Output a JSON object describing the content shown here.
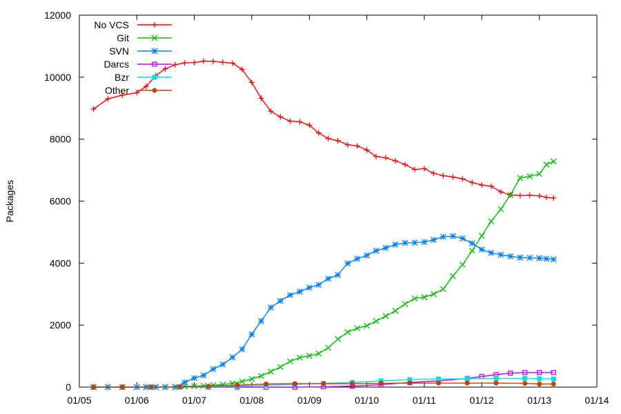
{
  "chart_data": {
    "type": "line",
    "ylabel": "Packages",
    "xlabel": "",
    "title": "",
    "xlim": [
      "2005-01-01",
      "2014-01-01"
    ],
    "ylim": [
      0,
      12000
    ],
    "x_ticks": [
      "01/05",
      "01/06",
      "01/07",
      "01/08",
      "01/09",
      "01/10",
      "01/11",
      "01/12",
      "01/13",
      "01/14"
    ],
    "y_ticks": [
      0,
      2000,
      4000,
      6000,
      8000,
      10000,
      12000
    ],
    "grid": false,
    "legend_position": "top-left",
    "series": [
      {
        "name": "No VCS",
        "color": "#ff0000",
        "marker": "plus",
        "x": [
          "2005-04-01",
          "2005-07-01",
          "2005-10-01",
          "2006-01-01",
          "2006-03-01",
          "2006-05-01",
          "2006-07-01",
          "2006-09-01",
          "2006-11-01",
          "2007-01-01",
          "2007-03-01",
          "2007-05-01",
          "2007-07-01",
          "2007-09-01",
          "2007-11-01",
          "2008-01-01",
          "2008-03-01",
          "2008-05-01",
          "2008-07-01",
          "2008-09-01",
          "2008-11-01",
          "2009-01-01",
          "2009-03-01",
          "2009-05-01",
          "2009-07-01",
          "2009-09-01",
          "2009-11-01",
          "2010-01-01",
          "2010-03-01",
          "2010-05-01",
          "2010-07-01",
          "2010-09-01",
          "2010-11-01",
          "2011-01-01",
          "2011-03-01",
          "2011-05-01",
          "2011-07-01",
          "2011-09-01",
          "2011-11-01",
          "2012-01-01",
          "2012-03-01",
          "2012-05-01",
          "2012-07-01",
          "2012-09-01",
          "2012-11-01",
          "2013-01-01",
          "2013-02-15",
          "2013-04-01"
        ],
        "values": [
          8970,
          9300,
          9420,
          9500,
          9700,
          10050,
          10270,
          10400,
          10460,
          10470,
          10520,
          10510,
          10480,
          10450,
          10250,
          9830,
          9320,
          8900,
          8720,
          8580,
          8560,
          8450,
          8200,
          8020,
          7950,
          7820,
          7780,
          7650,
          7440,
          7400,
          7300,
          7180,
          7020,
          7050,
          6900,
          6820,
          6780,
          6720,
          6600,
          6520,
          6480,
          6300,
          6200,
          6180,
          6190,
          6170,
          6120,
          6100
        ]
      },
      {
        "name": "Git",
        "color": "#00c000",
        "marker": "cross",
        "x": [
          "2005-04-01",
          "2005-07-01",
          "2005-10-01",
          "2006-01-01",
          "2006-03-01",
          "2006-05-01",
          "2006-07-01",
          "2006-09-01",
          "2006-11-01",
          "2007-01-01",
          "2007-03-01",
          "2007-05-01",
          "2007-07-01",
          "2007-09-01",
          "2007-11-01",
          "2008-01-01",
          "2008-03-01",
          "2008-05-01",
          "2008-07-01",
          "2008-09-01",
          "2008-11-01",
          "2009-01-01",
          "2009-03-01",
          "2009-05-01",
          "2009-07-01",
          "2009-09-01",
          "2009-11-01",
          "2010-01-01",
          "2010-03-01",
          "2010-05-01",
          "2010-07-01",
          "2010-09-01",
          "2010-11-01",
          "2011-01-01",
          "2011-03-01",
          "2011-05-01",
          "2011-07-01",
          "2011-09-01",
          "2011-11-01",
          "2012-01-01",
          "2012-03-01",
          "2012-05-01",
          "2012-07-01",
          "2012-09-01",
          "2012-11-01",
          "2013-01-01",
          "2013-02-15",
          "2013-04-01"
        ],
        "values": [
          0,
          0,
          0,
          0,
          0,
          0,
          0,
          10,
          20,
          30,
          40,
          60,
          80,
          120,
          180,
          260,
          360,
          500,
          650,
          830,
          950,
          1010,
          1080,
          1270,
          1550,
          1770,
          1900,
          1980,
          2130,
          2290,
          2460,
          2680,
          2860,
          2900,
          3000,
          3160,
          3580,
          3950,
          4400,
          4880,
          5350,
          5740,
          6200,
          6750,
          6800,
          6880,
          7180,
          7280
        ]
      },
      {
        "name": "SVN",
        "color": "#0080ff",
        "marker": "star",
        "x": [
          "2005-04-01",
          "2005-07-01",
          "2005-10-01",
          "2006-01-01",
          "2006-03-01",
          "2006-05-01",
          "2006-07-01",
          "2006-09-01",
          "2006-11-01",
          "2007-01-01",
          "2007-03-01",
          "2007-05-01",
          "2007-07-01",
          "2007-09-01",
          "2007-11-01",
          "2008-01-01",
          "2008-03-01",
          "2008-05-01",
          "2008-07-01",
          "2008-09-01",
          "2008-11-01",
          "2009-01-01",
          "2009-03-01",
          "2009-05-01",
          "2009-07-01",
          "2009-09-01",
          "2009-11-01",
          "2010-01-01",
          "2010-03-01",
          "2010-05-01",
          "2010-07-01",
          "2010-09-01",
          "2010-11-01",
          "2011-01-01",
          "2011-03-01",
          "2011-05-01",
          "2011-07-01",
          "2011-09-01",
          "2011-11-01",
          "2012-01-01",
          "2012-03-01",
          "2012-05-01",
          "2012-07-01",
          "2012-09-01",
          "2012-11-01",
          "2013-01-01",
          "2013-02-15",
          "2013-04-01"
        ],
        "values": [
          0,
          0,
          0,
          0,
          0,
          0,
          0,
          0,
          150,
          290,
          380,
          580,
          730,
          960,
          1220,
          1700,
          2130,
          2570,
          2780,
          2970,
          3080,
          3210,
          3300,
          3500,
          3620,
          3990,
          4140,
          4250,
          4400,
          4490,
          4600,
          4650,
          4660,
          4680,
          4750,
          4850,
          4870,
          4800,
          4640,
          4440,
          4330,
          4270,
          4220,
          4180,
          4170,
          4160,
          4140,
          4120
        ]
      },
      {
        "name": "Darcs",
        "color": "#c000ff",
        "marker": "square",
        "x": [
          "2005-04-01",
          "2005-10-01",
          "2006-04-01",
          "2006-10-01",
          "2007-04-01",
          "2007-10-01",
          "2008-04-01",
          "2008-10-01",
          "2009-04-01",
          "2009-10-01",
          "2010-04-01",
          "2010-10-01",
          "2011-04-01",
          "2011-10-01",
          "2012-01-01",
          "2012-04-01",
          "2012-07-01",
          "2012-10-01",
          "2013-01-01",
          "2013-04-01"
        ],
        "values": [
          0,
          0,
          0,
          0,
          0,
          0,
          0,
          0,
          10,
          30,
          80,
          150,
          200,
          280,
          340,
          400,
          450,
          470,
          470,
          470
        ]
      },
      {
        "name": "Bzr",
        "color": "#00e0e0",
        "marker": "filled-square",
        "x": [
          "2005-04-01",
          "2005-10-01",
          "2006-04-01",
          "2006-10-01",
          "2007-04-01",
          "2007-10-01",
          "2008-04-01",
          "2008-10-01",
          "2009-04-01",
          "2009-10-01",
          "2010-04-01",
          "2010-10-01",
          "2011-04-01",
          "2011-10-01",
          "2012-04-01",
          "2012-10-01",
          "2013-01-01",
          "2013-04-01"
        ],
        "values": [
          0,
          0,
          0,
          0,
          10,
          30,
          60,
          90,
          120,
          150,
          200,
          240,
          260,
          270,
          280,
          280,
          270,
          260
        ]
      },
      {
        "name": "Other",
        "color": "#c04000",
        "marker": "filled-circle",
        "x": [
          "2005-04-01",
          "2005-10-01",
          "2006-04-01",
          "2006-10-01",
          "2007-04-01",
          "2007-10-01",
          "2008-04-01",
          "2008-10-01",
          "2009-04-01",
          "2009-10-01",
          "2010-04-01",
          "2010-10-01",
          "2011-04-01",
          "2011-10-01",
          "2012-04-01",
          "2012-10-01",
          "2013-01-01",
          "2013-04-01"
        ],
        "values": [
          0,
          0,
          0,
          10,
          30,
          60,
          100,
          110,
          110,
          110,
          120,
          130,
          130,
          130,
          130,
          120,
          100,
          100
        ]
      }
    ]
  }
}
